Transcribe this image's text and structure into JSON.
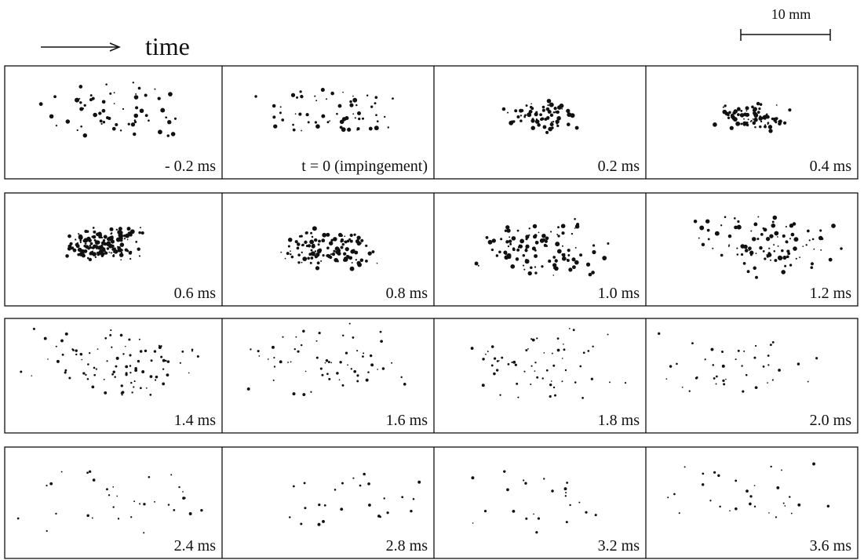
{
  "header": {
    "time_label": "time",
    "scale_label": "10 mm"
  },
  "panels": {
    "rows": [
      [
        "- 0.2 ms",
        "t = 0 (impingement)",
        "0.2 ms",
        "0.4 ms"
      ],
      [
        "0.6 ms",
        "0.8 ms",
        "1.0 ms",
        "1.2 ms"
      ],
      [
        "1.4 ms",
        "1.6 ms",
        "1.8 ms",
        "2.0 ms"
      ],
      [
        "2.4 ms",
        "2.8 ms",
        "3.2 ms",
        "3.6 ms"
      ]
    ]
  }
}
